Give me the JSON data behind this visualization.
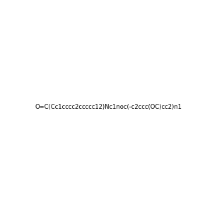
{
  "smiles": "O=C(Cc1cccc2ccccc12)Nc1noc(-c2ccc(OC)cc2)n1",
  "image_size": 300,
  "background_color": "#f0f0f0"
}
